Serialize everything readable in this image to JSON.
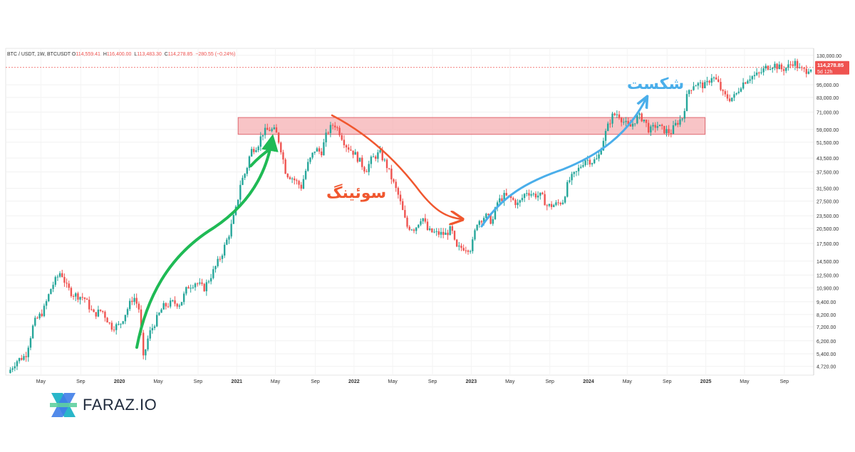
{
  "header": {
    "symbol": "BTC / USDT, 1W, BTCUSDT",
    "o_label": "O",
    "o_value": "114,559.41",
    "h_label": "H",
    "h_value": "116,400.00",
    "l_label": "L",
    "l_value": "113,483.30",
    "c_label": "C",
    "c_value": "114,278.85",
    "change": "−280.55 (−0.24%)"
  },
  "price_badge": {
    "price": "114,278.85",
    "countdown": "5d 12h",
    "color": "#ef5350"
  },
  "annotations": {
    "swing_label": "سوئینگ",
    "breakout_label": "شکست",
    "swing_color": "#f0572f",
    "breakout_color": "#4aaeea",
    "uptrend_color": "#1fba55",
    "zone_color": "#f6b0b3"
  },
  "brand": {
    "name": "FARAZ.IO"
  },
  "colors": {
    "up": "#26a69a",
    "down": "#ef5350"
  },
  "chart_data": {
    "type": "candlestick",
    "scale": "log",
    "y_ticks": [
      4720,
      5400,
      6200,
      7200,
      8200,
      9400,
      10900,
      12500,
      14500,
      17500,
      20500,
      23500,
      27500,
      31500,
      37500,
      43500,
      51500,
      59000,
      71000,
      83000,
      95000,
      130000
    ],
    "y_tick_labels": [
      "4,720.00",
      "5,400.00",
      "6,200.00",
      "7,200.00",
      "8,200.00",
      "9,400.00",
      "10,900.00",
      "12,500.00",
      "14,500.00",
      "17,500.00",
      "20,500.00",
      "23,500.00",
      "27,500.00",
      "31,500.00",
      "37,500.00",
      "43,500.00",
      "51,500.00",
      "59,000.00",
      "71,000.00",
      "83,000.00",
      "95,000.00",
      "130,000.00"
    ],
    "x_labels": [
      {
        "label": "May",
        "t": 2019.33
      },
      {
        "label": "Sep",
        "t": 2019.67
      },
      {
        "label": "2020",
        "t": 2020.0
      },
      {
        "label": "May",
        "t": 2020.33
      },
      {
        "label": "Sep",
        "t": 2020.67
      },
      {
        "label": "2021",
        "t": 2021.0
      },
      {
        "label": "May",
        "t": 2021.33
      },
      {
        "label": "Sep",
        "t": 2021.67
      },
      {
        "label": "2022",
        "t": 2022.0
      },
      {
        "label": "May",
        "t": 2022.33
      },
      {
        "label": "Sep",
        "t": 2022.67
      },
      {
        "label": "2023",
        "t": 2023.0
      },
      {
        "label": "May",
        "t": 2023.33
      },
      {
        "label": "Sep",
        "t": 2023.67
      },
      {
        "label": "2024",
        "t": 2024.0
      },
      {
        "label": "May",
        "t": 2024.33
      },
      {
        "label": "Sep",
        "t": 2024.67
      },
      {
        "label": "2025",
        "t": 2025.0
      },
      {
        "label": "May",
        "t": 2025.33
      },
      {
        "label": "Sep",
        "t": 2025.67
      }
    ],
    "x_bold": [
      "2020",
      "2021",
      "2022",
      "2023",
      "2024",
      "2025"
    ],
    "t_range": [
      2019.03,
      2025.92
    ],
    "price_range": [
      4300,
      140000
    ],
    "close_price": 114278.85,
    "resistance_zone": {
      "t_from": 2021.0,
      "t_to": 2025.0,
      "low": 56000,
      "high": 67000
    },
    "path_points": [
      [
        2019.05,
        4400
      ],
      [
        2019.12,
        5000
      ],
      [
        2019.2,
        5300
      ],
      [
        2019.27,
        7500
      ],
      [
        2019.35,
        8500
      ],
      [
        2019.42,
        11000
      ],
      [
        2019.5,
        13000
      ],
      [
        2019.55,
        11000
      ],
      [
        2019.6,
        10200
      ],
      [
        2019.7,
        9800
      ],
      [
        2019.78,
        8200
      ],
      [
        2019.85,
        8600
      ],
      [
        2019.93,
        7200
      ],
      [
        2020.0,
        7300
      ],
      [
        2020.05,
        8300
      ],
      [
        2020.12,
        10000
      ],
      [
        2020.17,
        8600
      ],
      [
        2020.2,
        5000
      ],
      [
        2020.25,
        6600
      ],
      [
        2020.3,
        7500
      ],
      [
        2020.37,
        8900
      ],
      [
        2020.45,
        9300
      ],
      [
        2020.52,
        9200
      ],
      [
        2020.58,
        11000
      ],
      [
        2020.65,
        11600
      ],
      [
        2020.72,
        10800
      ],
      [
        2020.8,
        13000
      ],
      [
        2020.87,
        15500
      ],
      [
        2020.93,
        19000
      ],
      [
        2021.0,
        26000
      ],
      [
        2021.03,
        33000
      ],
      [
        2021.08,
        38000
      ],
      [
        2021.12,
        47000
      ],
      [
        2021.18,
        50000
      ],
      [
        2021.22,
        57000
      ],
      [
        2021.28,
        59000
      ],
      [
        2021.33,
        58000
      ],
      [
        2021.37,
        50000
      ],
      [
        2021.42,
        37000
      ],
      [
        2021.48,
        35000
      ],
      [
        2021.55,
        32000
      ],
      [
        2021.6,
        40000
      ],
      [
        2021.67,
        48000
      ],
      [
        2021.72,
        46000
      ],
      [
        2021.77,
        57000
      ],
      [
        2021.83,
        63000
      ],
      [
        2021.88,
        57000
      ],
      [
        2021.93,
        50000
      ],
      [
        2022.0,
        46000
      ],
      [
        2022.05,
        42000
      ],
      [
        2022.1,
        38000
      ],
      [
        2022.15,
        43000
      ],
      [
        2022.22,
        46000
      ],
      [
        2022.28,
        40000
      ],
      [
        2022.33,
        34000
      ],
      [
        2022.38,
        29000
      ],
      [
        2022.45,
        21000
      ],
      [
        2022.52,
        20500
      ],
      [
        2022.58,
        23500
      ],
      [
        2022.63,
        20000
      ],
      [
        2022.7,
        19500
      ],
      [
        2022.78,
        19300
      ],
      [
        2022.83,
        20500
      ],
      [
        2022.87,
        16500
      ],
      [
        2022.93,
        16800
      ],
      [
        2023.0,
        16600
      ],
      [
        2023.05,
        22000
      ],
      [
        2023.12,
        23500
      ],
      [
        2023.18,
        22000
      ],
      [
        2023.22,
        27000
      ],
      [
        2023.28,
        29000
      ],
      [
        2023.33,
        28500
      ],
      [
        2023.4,
        26500
      ],
      [
        2023.47,
        30500
      ],
      [
        2023.53,
        29500
      ],
      [
        2023.6,
        29000
      ],
      [
        2023.65,
        26000
      ],
      [
        2023.72,
        26500
      ],
      [
        2023.78,
        27500
      ],
      [
        2023.83,
        34000
      ],
      [
        2023.9,
        37500
      ],
      [
        2023.97,
        43000
      ],
      [
        2024.03,
        42000
      ],
      [
        2024.08,
        43000
      ],
      [
        2024.12,
        52000
      ],
      [
        2024.17,
        62000
      ],
      [
        2024.2,
        68000
      ],
      [
        2024.25,
        70000
      ],
      [
        2024.3,
        64000
      ],
      [
        2024.35,
        60000
      ],
      [
        2024.42,
        68000
      ],
      [
        2024.47,
        66000
      ],
      [
        2024.52,
        58000
      ],
      [
        2024.58,
        62000
      ],
      [
        2024.63,
        59000
      ],
      [
        2024.7,
        57000
      ],
      [
        2024.75,
        63000
      ],
      [
        2024.8,
        67000
      ],
      [
        2024.85,
        89000
      ],
      [
        2024.9,
        96000
      ],
      [
        2024.95,
        95000
      ],
      [
        2025.0,
        94000
      ],
      [
        2025.05,
        104000
      ],
      [
        2025.1,
        98000
      ],
      [
        2025.15,
        85000
      ],
      [
        2025.2,
        82000
      ],
      [
        2025.25,
        84000
      ],
      [
        2025.3,
        95000
      ],
      [
        2025.37,
        103000
      ],
      [
        2025.45,
        106000
      ],
      [
        2025.52,
        115000
      ],
      [
        2025.58,
        118000
      ],
      [
        2025.65,
        112000
      ],
      [
        2025.7,
        115000
      ],
      [
        2025.75,
        122000
      ],
      [
        2025.8,
        112000
      ],
      [
        2025.85,
        110000
      ],
      [
        2025.88,
        114000
      ],
      [
        2025.91,
        114279
      ]
    ]
  }
}
